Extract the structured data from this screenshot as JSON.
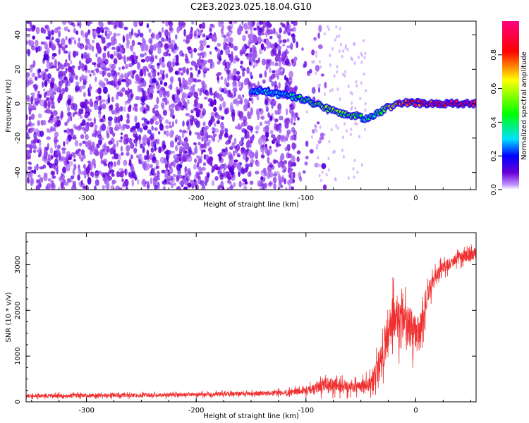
{
  "title": "C2E3.2023.025.18.04.G10",
  "chart_data": [
    {
      "type": "heatmap",
      "xlabel": "Height of straight line (km)",
      "ylabel": "Frequency (Hz)",
      "xlim": [
        -355,
        55
      ],
      "ylim": [
        -50,
        48
      ],
      "xticks": [
        -300,
        -200,
        -100,
        0
      ],
      "xtick_labels": [
        "-300",
        "-200",
        "-100",
        "0"
      ],
      "yticks": [
        -40,
        -20,
        0,
        20,
        40
      ],
      "ytick_labels": [
        "-40",
        "-20",
        "0",
        "20",
        "40"
      ],
      "grid": false,
      "colorbar": {
        "label": "Normalized spectral amplitude",
        "range": [
          0,
          1
        ],
        "ticks": [
          0.0,
          0.2,
          0.4,
          0.6,
          0.8
        ],
        "tick_labels": [
          "0.0",
          "0.2",
          "0.4",
          "0.6",
          "0.8"
        ],
        "colors": [
          "#ffffff",
          "#6a00d8",
          "#0000ff",
          "#00e0ff",
          "#00ff00",
          "#ffff00",
          "#ff0000",
          "#ff0080"
        ]
      },
      "noise_region": {
        "x_range": [
          -355,
          -100
        ],
        "freq_range": [
          -50,
          48
        ],
        "amplitude_typical": 0.1
      },
      "ridge": [
        {
          "x": -150,
          "freq": 8,
          "amp": 0.3
        },
        {
          "x": -130,
          "freq": 6,
          "amp": 0.3
        },
        {
          "x": -110,
          "freq": 4,
          "amp": 0.35
        },
        {
          "x": -95,
          "freq": 1,
          "amp": 0.45
        },
        {
          "x": -85,
          "freq": -2,
          "amp": 0.5
        },
        {
          "x": -75,
          "freq": -4,
          "amp": 0.5
        },
        {
          "x": -65,
          "freq": -6,
          "amp": 0.5
        },
        {
          "x": -55,
          "freq": -7,
          "amp": 0.45
        },
        {
          "x": -45,
          "freq": -9,
          "amp": 0.35
        },
        {
          "x": -35,
          "freq": -6,
          "amp": 0.4
        },
        {
          "x": -25,
          "freq": -2,
          "amp": 0.6
        },
        {
          "x": -15,
          "freq": 0,
          "amp": 0.75
        },
        {
          "x": -5,
          "freq": 1,
          "amp": 0.8
        },
        {
          "x": 5,
          "freq": 0,
          "amp": 0.85
        },
        {
          "x": 20,
          "freq": 0,
          "amp": 0.9
        },
        {
          "x": 35,
          "freq": 0,
          "amp": 0.9
        },
        {
          "x": 55,
          "freq": 0,
          "amp": 0.9
        }
      ]
    },
    {
      "type": "line",
      "xlabel": "Height of straight line (km)",
      "ylabel": "SNR (10 * v/v)",
      "xlim": [
        -355,
        55
      ],
      "ylim": [
        0,
        3700
      ],
      "xticks": [
        -300,
        -200,
        -100,
        0
      ],
      "xtick_labels": [
        "-300",
        "-200",
        "-100",
        "0"
      ],
      "yticks": [
        0,
        1000,
        2000,
        3000
      ],
      "ytick_labels": [
        "0",
        "1000",
        "2000",
        "3000"
      ],
      "grid": false,
      "color": "#f03030",
      "series": [
        {
          "x": [
            -355,
            -300,
            -250,
            -200,
            -150,
            -120,
            -100,
            -90,
            -80,
            -70,
            -60,
            -50,
            -40,
            -35,
            -30,
            -25,
            -20,
            -15,
            -10,
            -5,
            0,
            5,
            10,
            15,
            20,
            25,
            30,
            35,
            40,
            45,
            50,
            55
          ],
          "values": [
            130,
            140,
            145,
            160,
            180,
            200,
            240,
            300,
            380,
            350,
            350,
            340,
            400,
            700,
            1100,
            1600,
            1900,
            1800,
            1700,
            1600,
            1500,
            1600,
            2300,
            2600,
            2800,
            2950,
            3000,
            3100,
            3150,
            3200,
            3200,
            3250
          ],
          "noise": [
            80,
            80,
            80,
            80,
            90,
            100,
            150,
            250,
            300,
            300,
            280,
            280,
            350,
            600,
            800,
            1000,
            1000,
            1000,
            900,
            900,
            800,
            700,
            500,
            400,
            300,
            250,
            250,
            250,
            250,
            250,
            250,
            250
          ]
        }
      ]
    }
  ]
}
